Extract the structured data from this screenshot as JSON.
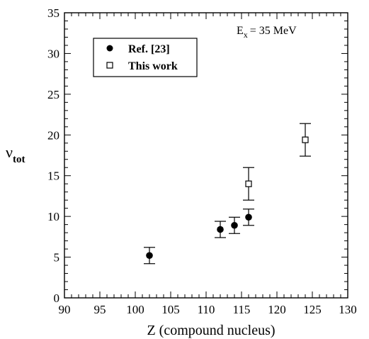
{
  "chart_data": {
    "type": "scatter",
    "xlabel": "Z (compound nucleus)",
    "ylabel": "ν",
    "ylabel_sub": "tot",
    "xlim": [
      90,
      130
    ],
    "ylim": [
      0,
      35
    ],
    "x_ticks": [
      "90",
      "95",
      "100",
      "105",
      "110",
      "115",
      "120",
      "125",
      "130"
    ],
    "y_ticks": [
      "0",
      "5",
      "10",
      "15",
      "20",
      "25",
      "30",
      "35"
    ],
    "grid": false,
    "legend_position": "top-left",
    "annotation": {
      "main": "E",
      "sub": "x",
      "rest": "= 35  MeV"
    },
    "series": [
      {
        "name": "Ref. [23]",
        "marker": "filled-circle",
        "points": [
          {
            "x": 102,
            "y": 5.2,
            "err": 1.0
          },
          {
            "x": 112,
            "y": 8.4,
            "err": 1.0
          },
          {
            "x": 114,
            "y": 8.9,
            "err": 1.0
          },
          {
            "x": 116,
            "y": 9.9,
            "err": 1.0
          }
        ]
      },
      {
        "name": "This work",
        "marker": "open-square",
        "points": [
          {
            "x": 116,
            "y": 14.0,
            "err": 2.0
          },
          {
            "x": 124,
            "y": 19.4,
            "err": 2.0
          }
        ]
      }
    ]
  }
}
